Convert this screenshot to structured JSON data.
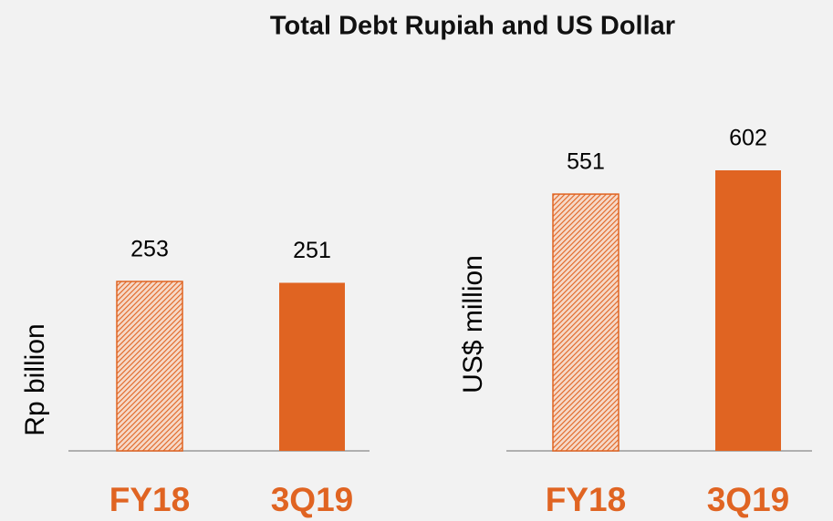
{
  "title": "Total Debt  Rupiah and US Dollar",
  "chart_data": [
    {
      "type": "bar",
      "y_label": "Rp billion",
      "categories": [
        "FY18",
        "3Q19"
      ],
      "values": [
        253,
        251
      ],
      "color": "#e06422",
      "hatched": [
        true,
        false
      ]
    },
    {
      "type": "bar",
      "y_label": "US$ million",
      "categories": [
        "FY18",
        "3Q19"
      ],
      "values": [
        551,
        602
      ],
      "color": "#e06422",
      "hatched": [
        true,
        false
      ]
    }
  ]
}
